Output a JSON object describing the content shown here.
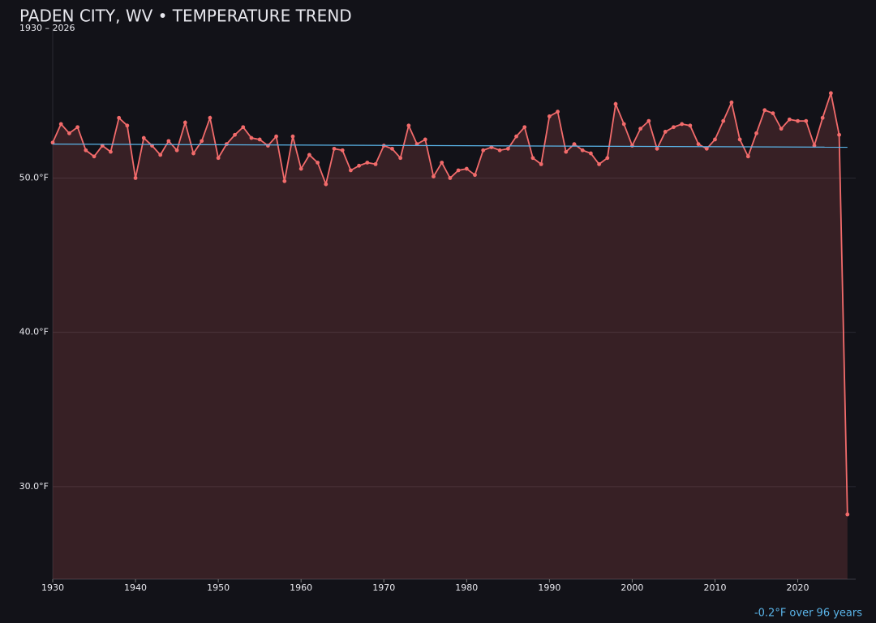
{
  "chart_data": {
    "type": "line",
    "title": "PADEN CITY, WV • TEMPERATURE TREND",
    "subtitle": "1930 – 2026",
    "annotation": "-0.2°F over 96 years",
    "x": [
      1930,
      1931,
      1932,
      1933,
      1934,
      1935,
      1936,
      1937,
      1938,
      1939,
      1940,
      1941,
      1942,
      1943,
      1944,
      1945,
      1946,
      1947,
      1948,
      1949,
      1950,
      1951,
      1952,
      1953,
      1954,
      1955,
      1956,
      1957,
      1958,
      1959,
      1960,
      1961,
      1962,
      1963,
      1964,
      1965,
      1966,
      1967,
      1968,
      1969,
      1970,
      1971,
      1972,
      1973,
      1974,
      1975,
      1976,
      1977,
      1978,
      1979,
      1980,
      1981,
      1982,
      1983,
      1984,
      1985,
      1986,
      1987,
      1988,
      1989,
      1990,
      1991,
      1992,
      1993,
      1994,
      1995,
      1996,
      1997,
      1998,
      1999,
      2000,
      2001,
      2002,
      2003,
      2004,
      2005,
      2006,
      2007,
      2008,
      2009,
      2010,
      2011,
      2012,
      2013,
      2014,
      2015,
      2016,
      2017,
      2018,
      2019,
      2020,
      2021,
      2022,
      2023,
      2024,
      2025,
      2026
    ],
    "series": [
      {
        "color": "#f26b6b",
        "values": [
          52.3,
          53.5,
          52.9,
          53.3,
          51.8,
          51.4,
          52.1,
          51.7,
          53.9,
          53.4,
          50.0,
          52.6,
          52.1,
          51.5,
          52.4,
          51.8,
          53.6,
          51.6,
          52.4,
          53.9,
          51.3,
          52.2,
          52.8,
          53.3,
          52.6,
          52.5,
          52.1,
          52.7,
          49.8,
          52.7,
          50.6,
          51.5,
          51.0,
          49.6,
          51.9,
          51.8,
          50.5,
          50.8,
          51.0,
          50.9,
          52.1,
          51.9,
          51.3,
          53.4,
          52.2,
          52.5,
          50.1,
          51.0,
          50.0,
          50.5,
          50.6,
          50.2,
          51.8,
          52.0,
          51.8,
          51.9,
          52.7,
          53.3,
          51.3,
          50.9,
          54.0,
          54.3,
          51.7,
          52.2,
          51.8,
          51.6,
          50.9,
          51.3,
          54.8,
          53.5,
          52.1,
          53.2,
          53.7,
          51.9,
          53.0,
          53.3,
          53.5,
          53.4,
          52.2,
          51.9,
          52.5,
          53.7,
          54.9,
          52.5,
          51.4,
          52.9,
          54.4,
          54.2,
          53.2,
          53.8,
          53.7,
          53.7,
          52.1,
          53.9,
          55.5,
          52.8,
          28.2
        ]
      }
    ],
    "trend": {
      "color": "#5ab4e8",
      "x": [
        1930,
        2026
      ],
      "values": [
        52.2,
        52.0
      ]
    },
    "xlim": [
      1930,
      2027
    ],
    "xticks": [
      1930,
      1940,
      1950,
      1960,
      1970,
      1980,
      1990,
      2000,
      2010,
      2020
    ],
    "ylim": [
      24,
      59.7
    ],
    "yticks": [
      {
        "value": 30,
        "label": "30.0°F"
      },
      {
        "value": 40,
        "label": "40.0°F"
      },
      {
        "value": 50,
        "label": "50.0°F"
      }
    ],
    "grid": true
  }
}
